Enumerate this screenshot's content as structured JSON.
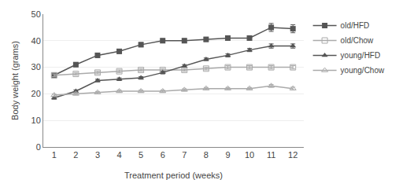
{
  "chart_data": {
    "type": "line",
    "xlabel": "Treatment period (weeks)",
    "ylabel": "Body weight (grams)",
    "x": [
      1,
      2,
      3,
      4,
      5,
      6,
      7,
      8,
      9,
      10,
      11,
      12
    ],
    "series": [
      {
        "name": "old/HFD",
        "color": "#555555",
        "marker": "square",
        "values": [
          27,
          31,
          34.5,
          36,
          38.5,
          40,
          40,
          40.5,
          41,
          41,
          45,
          44.5
        ],
        "errors": [
          0.7,
          0.8,
          0.8,
          0.8,
          0.8,
          0.8,
          0.8,
          0.8,
          0.8,
          0.8,
          1.5,
          1.5
        ]
      },
      {
        "name": "old/Chow",
        "color": "#aaaaaa",
        "marker": "square-open",
        "values": [
          27,
          27.5,
          28,
          28.5,
          29,
          29,
          29,
          29.5,
          30,
          30,
          30,
          30
        ],
        "errors": [
          0.5,
          0.5,
          0.5,
          0.5,
          0.5,
          0.5,
          0.5,
          0.5,
          0.6,
          0.6,
          0.6,
          0.6
        ]
      },
      {
        "name": "young/HFD",
        "color": "#555555",
        "marker": "triangle-up",
        "values": [
          18.5,
          21,
          25,
          25.5,
          26,
          28,
          30.5,
          33,
          34.5,
          36.5,
          38,
          38
        ],
        "errors": [
          0.5,
          0.5,
          0.5,
          0.5,
          0.5,
          0.5,
          0.5,
          0.5,
          0.6,
          0.6,
          0.8,
          0.8
        ]
      },
      {
        "name": "young/Chow",
        "color": "#aaaaaa",
        "marker": "triangle-up-open",
        "values": [
          19.5,
          20,
          20.5,
          21,
          21,
          21,
          21.5,
          22,
          22,
          22,
          23,
          22
        ],
        "errors": [
          0.4,
          0.4,
          0.4,
          0.4,
          0.4,
          0.4,
          0.4,
          0.4,
          0.4,
          0.4,
          0.5,
          0.5
        ]
      }
    ],
    "xlim": [
      0.5,
      12.5
    ],
    "xticks": [
      1,
      2,
      3,
      4,
      5,
      6,
      7,
      8,
      9,
      10,
      11,
      12
    ],
    "ylim": [
      0,
      50
    ],
    "yticks": [
      0,
      10,
      20,
      30,
      40,
      50
    ],
    "grid": "y",
    "legend": "right"
  }
}
